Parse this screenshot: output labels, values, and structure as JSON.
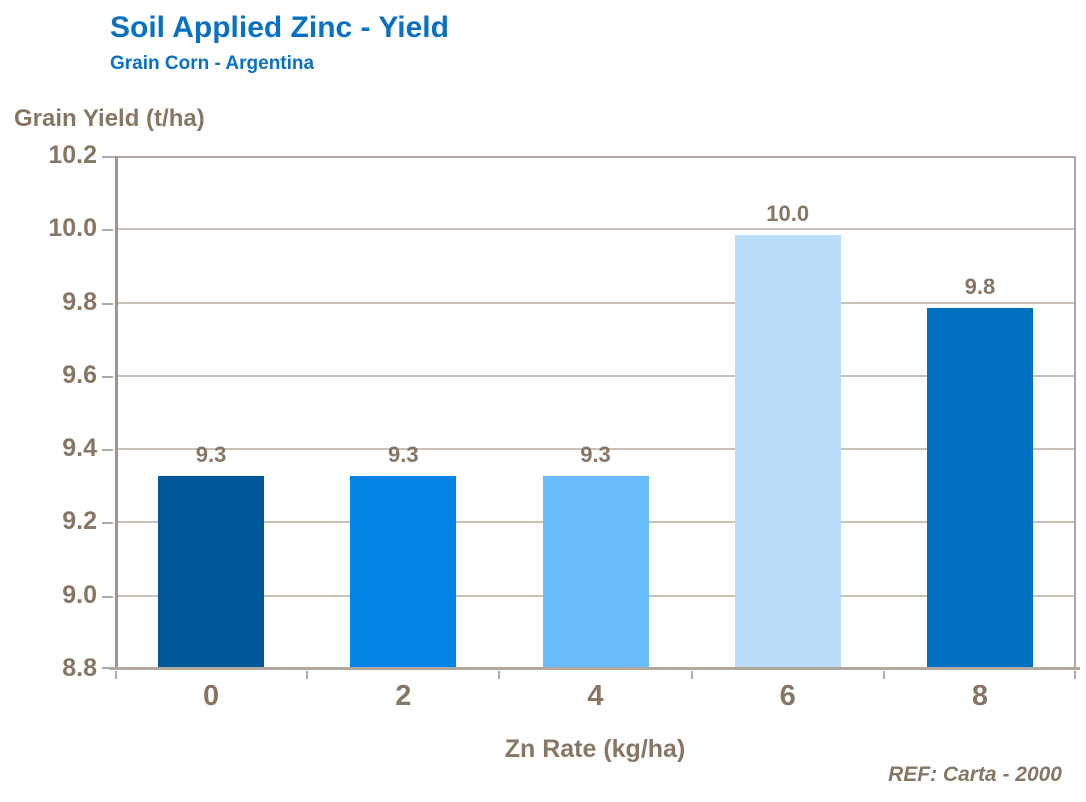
{
  "header": {
    "title": "Soil Applied Zinc - Yield",
    "subtitle": "Grain Corn - Argentina"
  },
  "footer": {
    "reference": "REF: Carta - 2000"
  },
  "colors": {
    "title_blue": "#0a70c2",
    "axis_text_brown": "#877664",
    "gridline": "#c9c1b8",
    "axis_line": "#b0a79e",
    "bar_colors": [
      "#00589b",
      "#0483e6",
      "#69bcfc",
      "#bbddfb",
      "#0070c0"
    ]
  },
  "chart_data": {
    "type": "bar",
    "title": "Soil Applied Zinc - Yield",
    "subtitle": "Grain Corn - Argentina",
    "categories": [
      "0",
      "2",
      "4",
      "6",
      "8"
    ],
    "values": [
      9.3,
      9.3,
      9.3,
      10.0,
      9.8
    ],
    "bar_labels": [
      "9.3",
      "9.3",
      "9.3",
      "10.0",
      "9.8"
    ],
    "plot_values": [
      9.32,
      9.32,
      9.32,
      9.98,
      9.78
    ],
    "bar_colors": [
      "#00589b",
      "#0483e6",
      "#69bcfc",
      "#bbddfb",
      "#0070c0"
    ],
    "xlabel": "Zn Rate (kg/ha)",
    "ylabel": "Grain Yield (t/ha)",
    "ylim": [
      8.8,
      10.2
    ],
    "ytick_step": 0.2,
    "ytick_labels": [
      "8.8",
      "9.0",
      "9.2",
      "9.4",
      "9.6",
      "9.8",
      "10.0",
      "10.2"
    ],
    "grid": "horizontal-only",
    "legend": "none",
    "annotation": "REF: Carta - 2000"
  }
}
